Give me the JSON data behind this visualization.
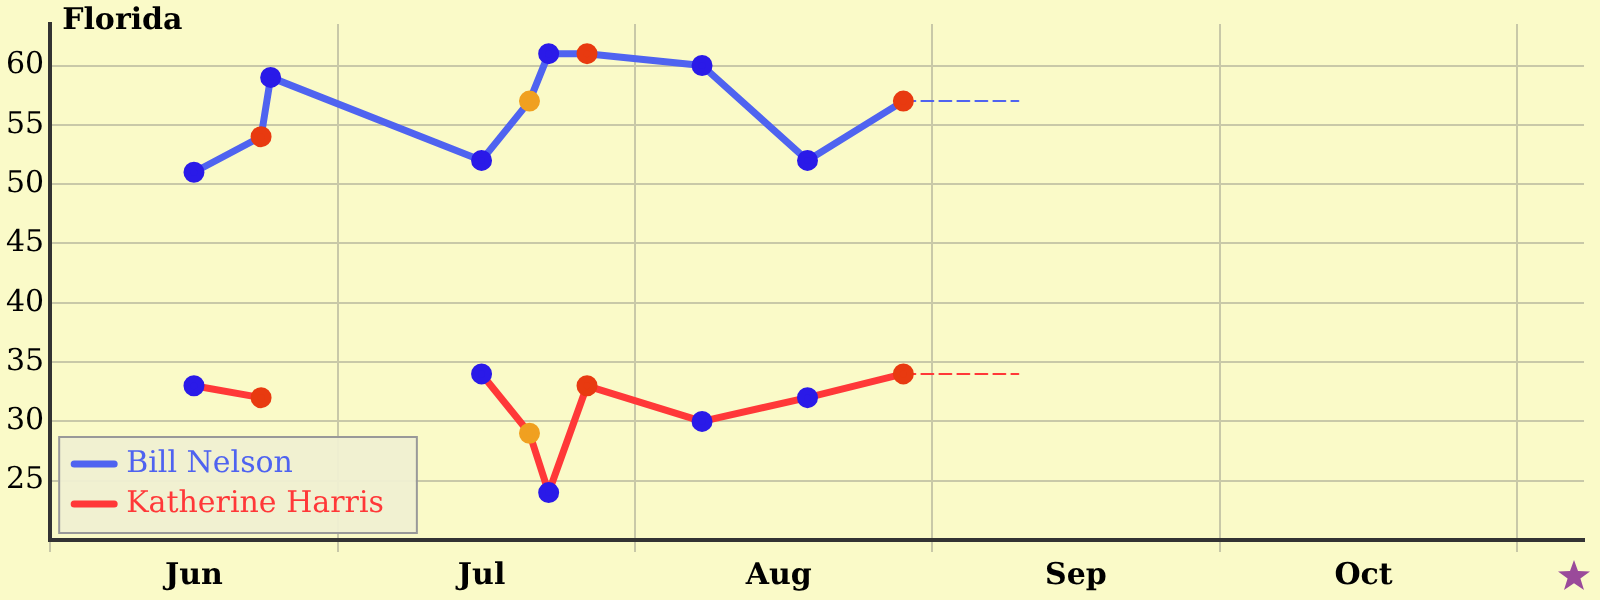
{
  "chart_data": {
    "type": "line",
    "title": "Florida",
    "xlim": [
      "--06-01",
      "--11-08"
    ],
    "xticks": [
      {
        "value": "--06-01",
        "label": null
      },
      {
        "value": "--06-16",
        "label": "Jun"
      },
      {
        "value": "--07-01",
        "label": null
      },
      {
        "value": "--07-16",
        "label": "Jul"
      },
      {
        "value": "--08-01",
        "label": null
      },
      {
        "value": "--08-16",
        "label": "Aug"
      },
      {
        "value": "--09-01",
        "label": null
      },
      {
        "value": "--09-16",
        "label": "Sep"
      },
      {
        "value": "--10-01",
        "label": null
      },
      {
        "value": "--10-16",
        "label": "Oct"
      },
      {
        "value": "--11-01",
        "label": null
      }
    ],
    "ylim": [
      20,
      63.5
    ],
    "yticks": [
      25,
      30,
      35,
      40,
      45,
      50,
      55,
      60
    ],
    "grid": true,
    "legend": "bottom left",
    "marker": "circle",
    "series": [
      {
        "name": "Bill Nelson",
        "color": "#4f63f0",
        "x": [
          "--06-16",
          "--06-23",
          "--06-24",
          "--07-16",
          "--07-21",
          "--07-23",
          "--07-27",
          "--08-08",
          "--08-19",
          "--08-29"
        ],
        "values": [
          51,
          54,
          59,
          52,
          57,
          61,
          61,
          60,
          52,
          57
        ],
        "colors": [
          "#2a1ae8",
          "#e83a10",
          "#2a1ae8",
          "#2a1ae8",
          "#f0a020",
          "#2a1ae8",
          "#e83a10",
          "#2a1ae8",
          "#2a1ae8",
          "#e83a10"
        ]
      },
      {
        "name": "Katherine Harris",
        "color": "#ff3838",
        "x": [
          "--06-16",
          "--06-23",
          "--06-24",
          "--07-16",
          "--07-21",
          "--07-23",
          "--07-27",
          "--08-08",
          "--08-19",
          "--08-29"
        ],
        "values": [
          33,
          32,
          null,
          34,
          29,
          24,
          33,
          30,
          32,
          34
        ],
        "colors": [
          "#2a1ae8",
          "#e83a10",
          "#2a1ae8",
          "#2a1ae8",
          "#f0a020",
          "#2a1ae8",
          "#e83a10",
          "#2a1ae8",
          "#2a1ae8",
          "#e83a10"
        ]
      },
      {
        "color": "#4f63f0",
        "x": [
          "--08-29",
          "--09-10"
        ],
        "values": [
          57,
          57
        ],
        "line_style": "dashed",
        "marker": "none"
      },
      {
        "color": "#ff3838",
        "x": [
          "--08-29",
          "--09-10"
        ],
        "values": [
          34,
          34
        ],
        "line_style": "dashed",
        "marker": "none"
      }
    ]
  }
}
